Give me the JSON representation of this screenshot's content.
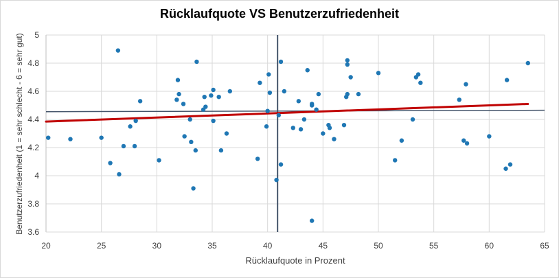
{
  "chart_data": {
    "type": "scatter",
    "title": "Rücklaufquote VS Benutzerzufriedenheit",
    "xlabel": "Rücklaufquote in Prozent",
    "ylabel": "Benutzerzufriedenheit (1 = sehr schlecht - 6 = sehr gut)",
    "xlim": [
      20,
      65
    ],
    "ylim": [
      3.6,
      5
    ],
    "x_ticks": [
      "20",
      "25",
      "30",
      "35",
      "40",
      "45",
      "50",
      "55",
      "60",
      "65"
    ],
    "y_ticks": [
      "3.6",
      "3.8",
      "4",
      "4.2",
      "4.4",
      "4.6",
      "4.8",
      "5"
    ],
    "grid": true,
    "legend": "none",
    "point_color": "#1f77b4",
    "trendline_color": "#c00000",
    "reference_line_color": "#44546a",
    "series": [
      {
        "points": [
          [
            20.2,
            4.27
          ],
          [
            22.2,
            4.26
          ],
          [
            25.0,
            4.27
          ],
          [
            25.8,
            4.09
          ],
          [
            26.5,
            4.89
          ],
          [
            26.6,
            4.01
          ],
          [
            27.0,
            4.21
          ],
          [
            27.6,
            4.35
          ],
          [
            28.0,
            4.21
          ],
          [
            28.1,
            4.39
          ],
          [
            28.5,
            4.53
          ],
          [
            30.2,
            4.11
          ],
          [
            31.8,
            4.54
          ],
          [
            31.9,
            4.68
          ],
          [
            32.0,
            4.58
          ],
          [
            32.4,
            4.51
          ],
          [
            32.5,
            4.28
          ],
          [
            33.0,
            4.4
          ],
          [
            33.1,
            4.24
          ],
          [
            33.3,
            3.91
          ],
          [
            33.5,
            4.18
          ],
          [
            33.6,
            4.81
          ],
          [
            34.2,
            4.47
          ],
          [
            34.3,
            4.56
          ],
          [
            34.4,
            4.49
          ],
          [
            34.9,
            4.57
          ],
          [
            35.1,
            4.61
          ],
          [
            35.1,
            4.39
          ],
          [
            35.6,
            4.56
          ],
          [
            35.8,
            4.18
          ],
          [
            36.3,
            4.3
          ],
          [
            36.6,
            4.6
          ],
          [
            39.1,
            4.12
          ],
          [
            39.3,
            4.66
          ],
          [
            39.9,
            4.35
          ],
          [
            40.0,
            4.46
          ],
          [
            40.1,
            4.72
          ],
          [
            40.2,
            4.59
          ],
          [
            40.8,
            3.97
          ],
          [
            41.0,
            4.43
          ],
          [
            41.2,
            4.81
          ],
          [
            41.2,
            4.08
          ],
          [
            41.5,
            4.6
          ],
          [
            42.3,
            4.34
          ],
          [
            42.8,
            4.53
          ],
          [
            43.0,
            4.33
          ],
          [
            43.3,
            4.4
          ],
          [
            43.6,
            4.75
          ],
          [
            44.0,
            4.5
          ],
          [
            44.0,
            4.51
          ],
          [
            44.0,
            3.68
          ],
          [
            44.4,
            4.47
          ],
          [
            44.6,
            4.58
          ],
          [
            45.0,
            4.3
          ],
          [
            45.5,
            4.36
          ],
          [
            45.6,
            4.34
          ],
          [
            46.0,
            4.26
          ],
          [
            46.9,
            4.36
          ],
          [
            47.1,
            4.56
          ],
          [
            47.2,
            4.58
          ],
          [
            47.2,
            4.79
          ],
          [
            47.2,
            4.82
          ],
          [
            47.5,
            4.7
          ],
          [
            48.2,
            4.58
          ],
          [
            50.0,
            4.73
          ],
          [
            51.5,
            4.11
          ],
          [
            52.1,
            4.25
          ],
          [
            53.1,
            4.4
          ],
          [
            53.4,
            4.7
          ],
          [
            53.6,
            4.72
          ],
          [
            53.8,
            4.66
          ],
          [
            57.3,
            4.54
          ],
          [
            57.7,
            4.25
          ],
          [
            57.9,
            4.65
          ],
          [
            58.0,
            4.23
          ],
          [
            60.0,
            4.28
          ],
          [
            61.5,
            4.05
          ],
          [
            61.6,
            4.68
          ],
          [
            61.9,
            4.08
          ],
          [
            63.5,
            4.8
          ]
        ]
      }
    ],
    "trendline": {
      "from": [
        20,
        4.385
      ],
      "to": [
        63.5,
        4.51
      ]
    },
    "reference_lines": {
      "vertical_x": 40.9,
      "horizontal": {
        "from": [
          20,
          4.455
        ],
        "to": [
          65,
          4.465
        ]
      }
    }
  }
}
